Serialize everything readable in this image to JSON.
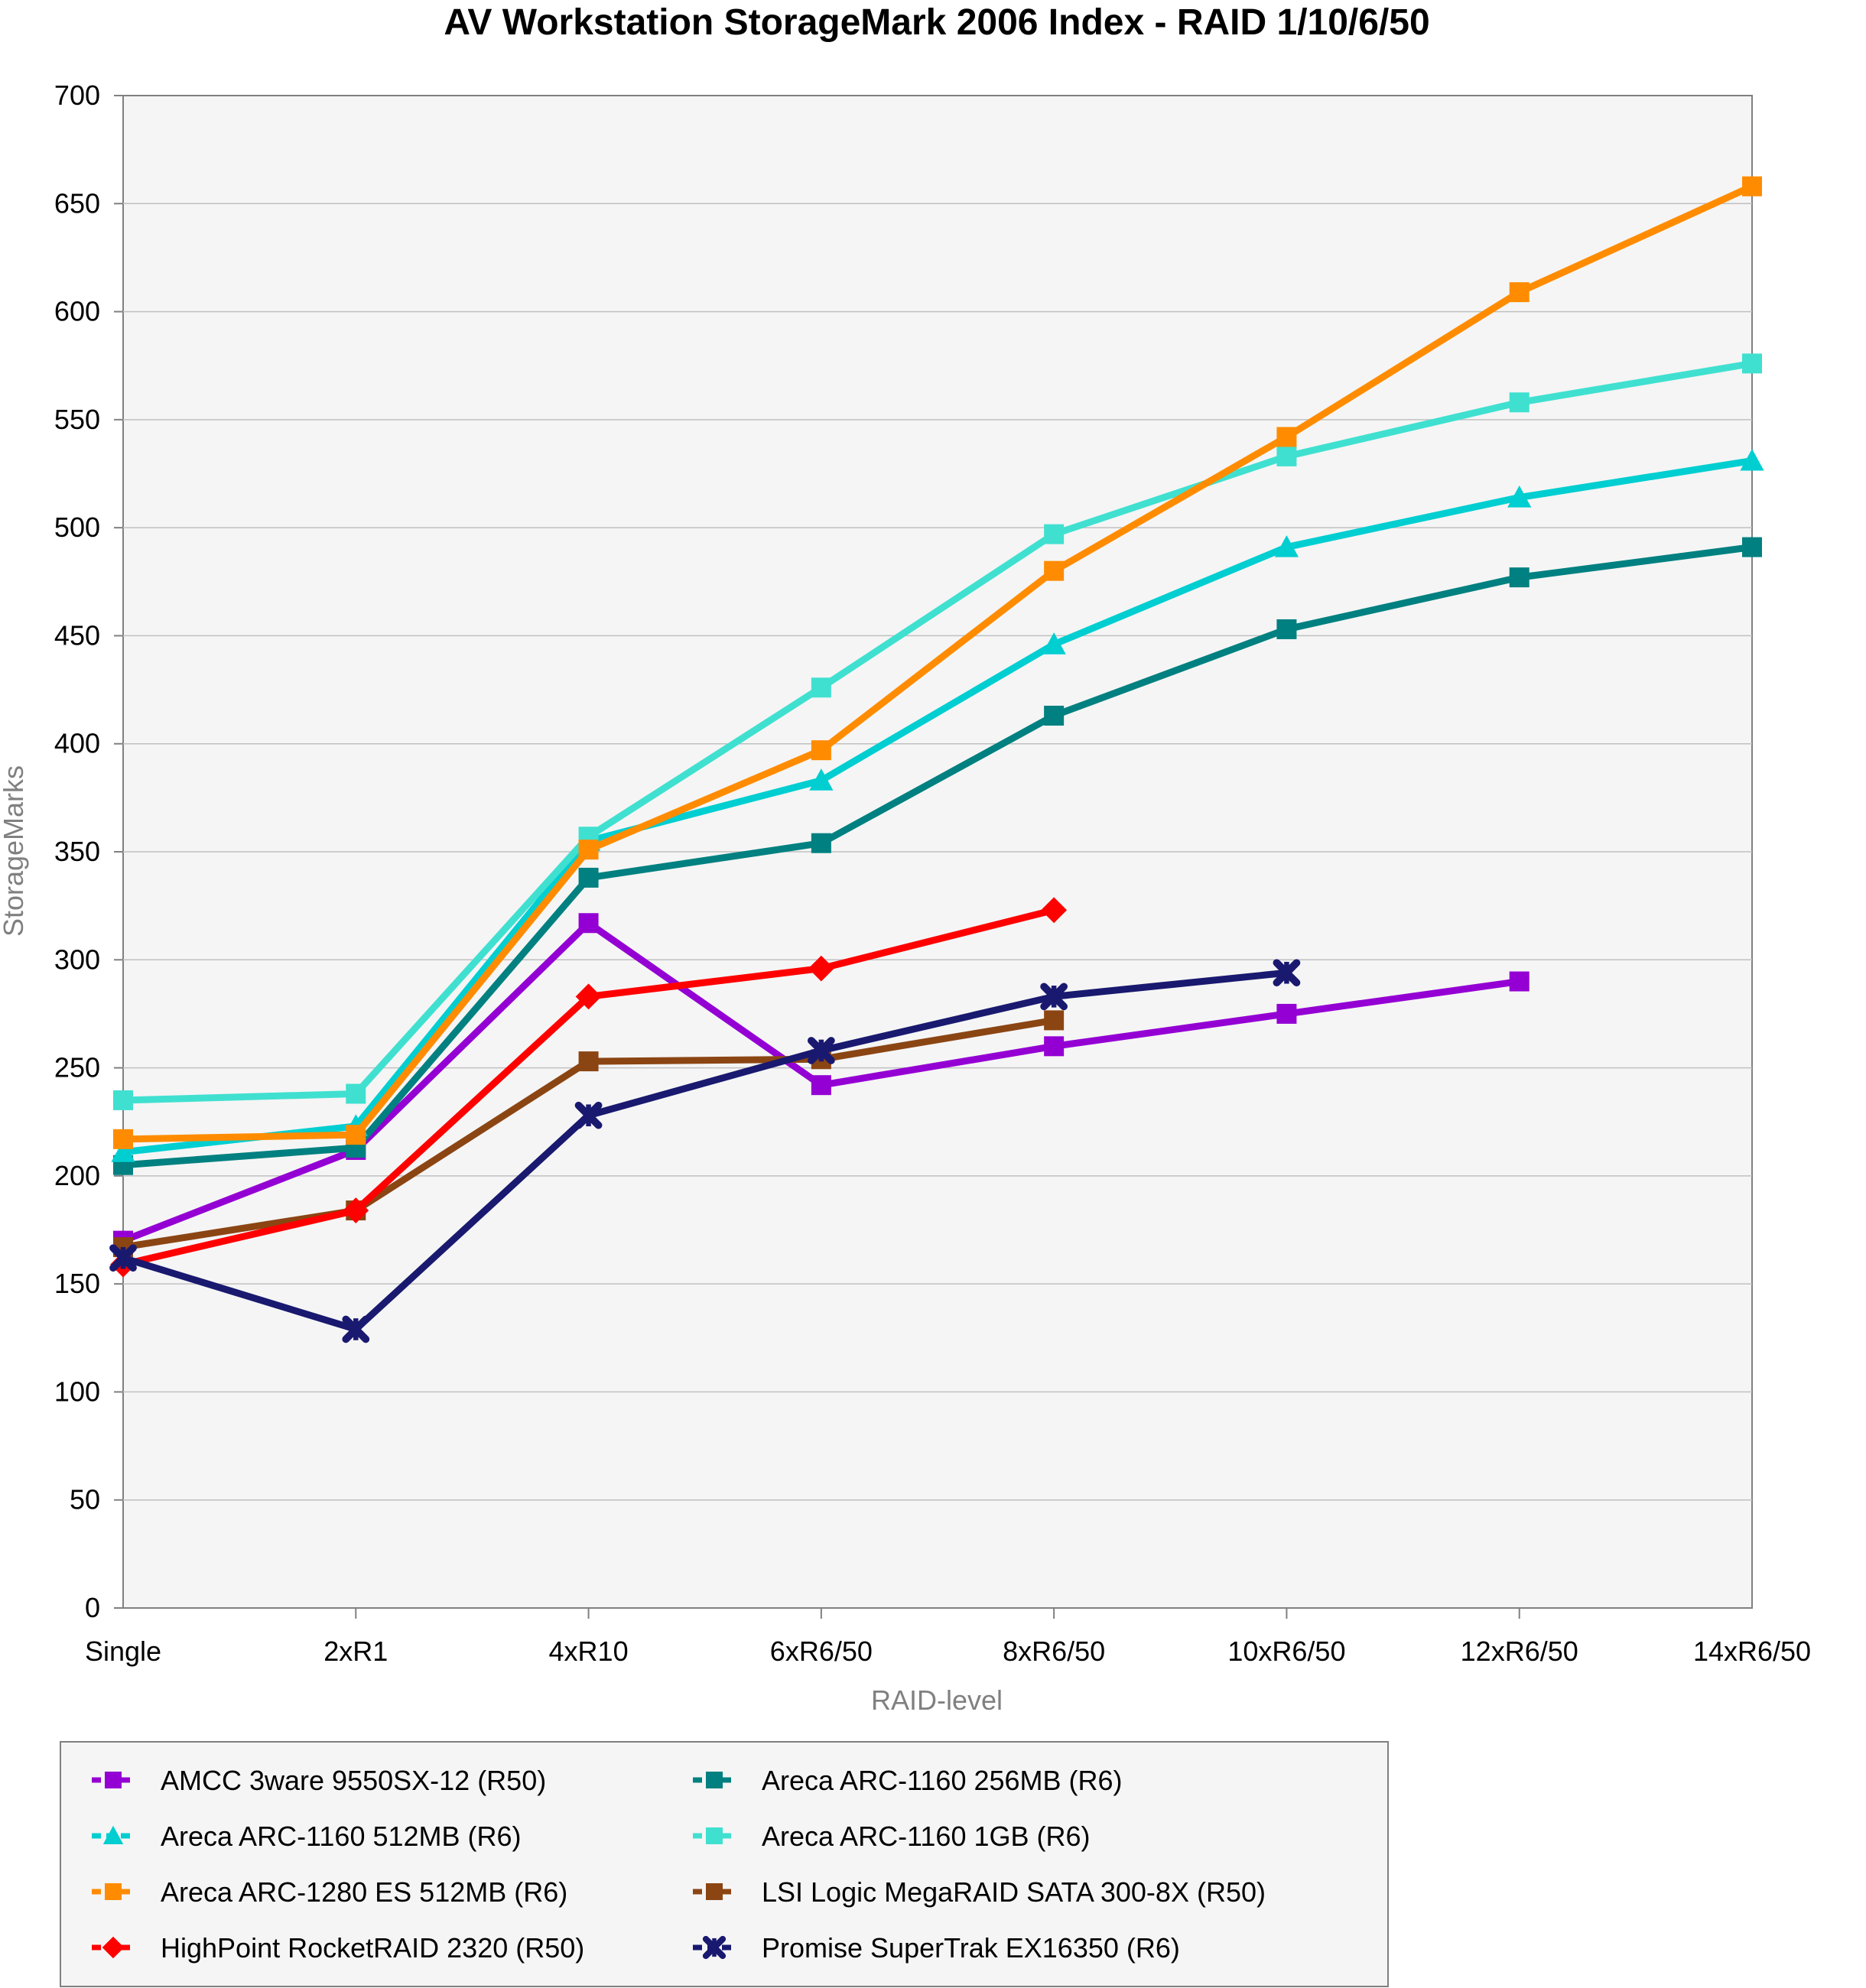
{
  "chart_data": {
    "type": "line",
    "title": "AV Workstation StorageMark 2006 Index - RAID 1/10/6/50",
    "xlabel": "RAID-level",
    "ylabel": "StorageMarks",
    "categories": [
      "Single",
      "2xR1",
      "4xR10",
      "6xR6/50",
      "8xR6/50",
      "10xR6/50",
      "12xR6/50",
      "14xR6/50"
    ],
    "ylim": [
      0,
      700
    ],
    "yticks": [
      0,
      50,
      100,
      150,
      200,
      250,
      300,
      350,
      400,
      450,
      500,
      550,
      600,
      650,
      700
    ],
    "grid": "horizontal",
    "legend_position": "bottom",
    "series": [
      {
        "name": "AMCC 3ware 9550SX-12 (R50)",
        "color": "#9400D3",
        "marker": "square",
        "values": [
          170,
          212,
          317,
          242,
          260,
          275,
          290,
          null
        ]
      },
      {
        "name": "Areca ARC-1160 256MB  (R6)",
        "color": "#008080",
        "marker": "square",
        "values": [
          205,
          213,
          338,
          354,
          413,
          453,
          477,
          491
        ]
      },
      {
        "name": "Areca ARC-1160 512MB (R6)",
        "color": "#00CED1",
        "marker": "triangle",
        "values": [
          211,
          223,
          355,
          383,
          446,
          491,
          514,
          531
        ]
      },
      {
        "name": "Areca ARC-1160 1GB (R6)",
        "color": "#40E0D0",
        "marker": "square",
        "values": [
          235,
          238,
          357,
          426,
          497,
          533,
          558,
          576
        ]
      },
      {
        "name": "Areca ARC-1280 ES 512MB (R6)",
        "color": "#FF8C00",
        "marker": "square",
        "values": [
          217,
          219,
          351,
          397,
          480,
          542,
          609,
          658
        ]
      },
      {
        "name": "LSI Logic MegaRAID SATA 300-8X (R50)",
        "color": "#8B4513",
        "marker": "square",
        "values": [
          167,
          184,
          253,
          254,
          272,
          null,
          null,
          null
        ]
      },
      {
        "name": "HighPoint RocketRAID 2320 (R50)",
        "color": "#FF0000",
        "marker": "diamond",
        "values": [
          159,
          184,
          283,
          296,
          323,
          null,
          null,
          null
        ]
      },
      {
        "name": "Promise SuperTrak EX16350 (R6)",
        "color": "#191970",
        "marker": "x",
        "values": [
          162,
          129,
          228,
          258,
          283,
          294,
          null,
          null
        ]
      }
    ]
  }
}
